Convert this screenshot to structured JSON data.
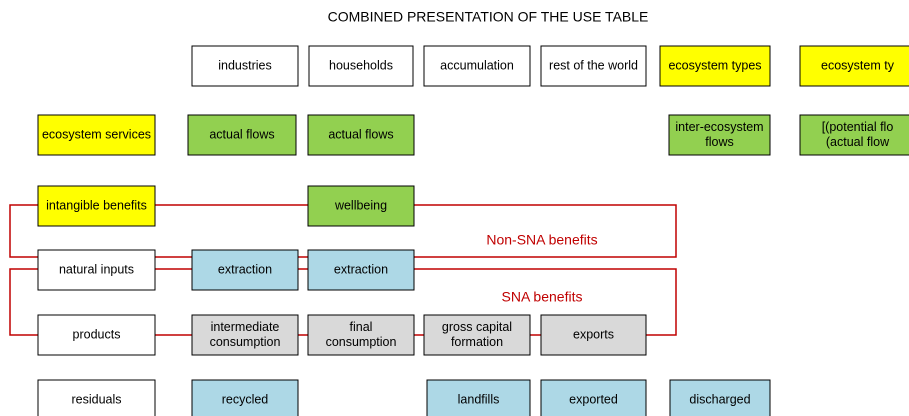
{
  "title": "COMBINED PRESENTATION OF THE USE TABLE",
  "nodes": [
    {
      "label": [
        "industries"
      ]
    },
    {
      "label": [
        "households"
      ]
    },
    {
      "label": [
        "accumulation"
      ]
    },
    {
      "label": [
        "rest of the world"
      ]
    },
    {
      "label": [
        "ecosystem types"
      ]
    },
    {
      "label": [
        "ecosystem ty"
      ]
    },
    {
      "label": [
        "ecosystem services"
      ]
    },
    {
      "label": [
        "actual flows"
      ]
    },
    {
      "label": [
        "actual flows"
      ]
    },
    {
      "label": [
        "inter-ecosystem",
        "flows"
      ]
    },
    {
      "label": [
        "[(potential flo",
        "(actual flow"
      ]
    },
    {
      "label": [
        "intangible benefits"
      ]
    },
    {
      "label": [
        "wellbeing"
      ]
    },
    {
      "label": [
        "natural inputs"
      ]
    },
    {
      "label": [
        "extraction"
      ]
    },
    {
      "label": [
        "extraction"
      ]
    },
    {
      "label": [
        "products"
      ]
    },
    {
      "label": [
        "intermediate",
        "consumption"
      ]
    },
    {
      "label": [
        "final",
        "consumption"
      ]
    },
    {
      "label": [
        "gross capital",
        "formation"
      ]
    },
    {
      "label": [
        "exports"
      ]
    },
    {
      "label": [
        "residuals"
      ]
    },
    {
      "label": [
        "recycled"
      ]
    },
    {
      "label": [
        "landfills"
      ]
    },
    {
      "label": [
        "exported"
      ]
    },
    {
      "label": [
        "discharged"
      ]
    }
  ],
  "regions": [
    {
      "label": "Non-SNA benefits"
    },
    {
      "label": "SNA benefits"
    }
  ]
}
